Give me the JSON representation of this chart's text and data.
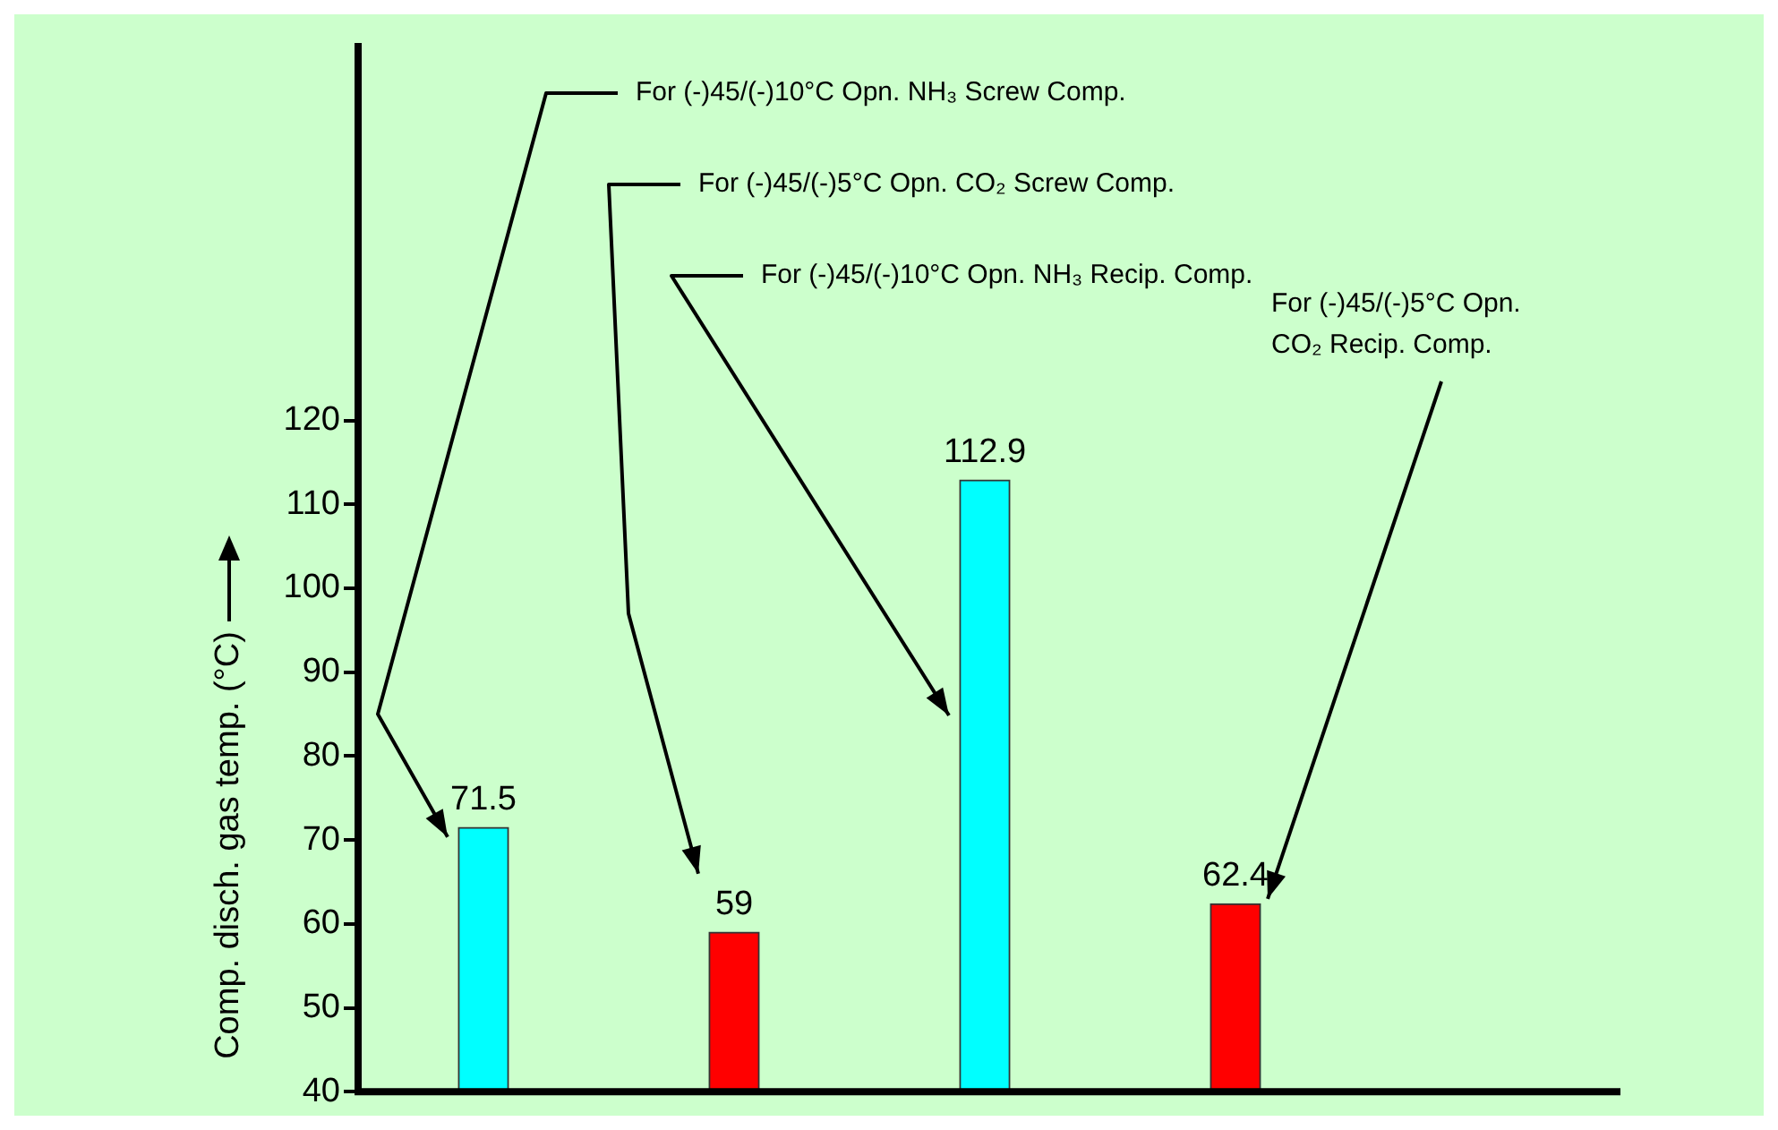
{
  "chart_data": {
    "type": "bar",
    "ylabel": "Comp. disch. gas temp. (°C)",
    "categories": [
      null,
      null,
      null,
      null
    ],
    "values": [
      71.5,
      59,
      112.9,
      62.4
    ],
    "colors": [
      "#00ffff",
      "#ff0000",
      "#00ffff",
      "#ff0000"
    ],
    "ylim": [
      40,
      165
    ],
    "yticks": [
      40,
      50,
      60,
      70,
      80,
      90,
      100,
      110,
      120
    ],
    "annotations": [
      "For (-)45/(-)10°C Opn. NH₃ Screw Comp.",
      "For (-)45/(-)5°C Opn. CO₂ Screw Comp.",
      "For (-)45/(-)10°C Opn. NH₃ Recip. Comp.",
      "For (-)45/(-)5°C Opn. CO₂ Recip. Comp."
    ],
    "grid": false,
    "legend": false,
    "data_labels": true
  }
}
